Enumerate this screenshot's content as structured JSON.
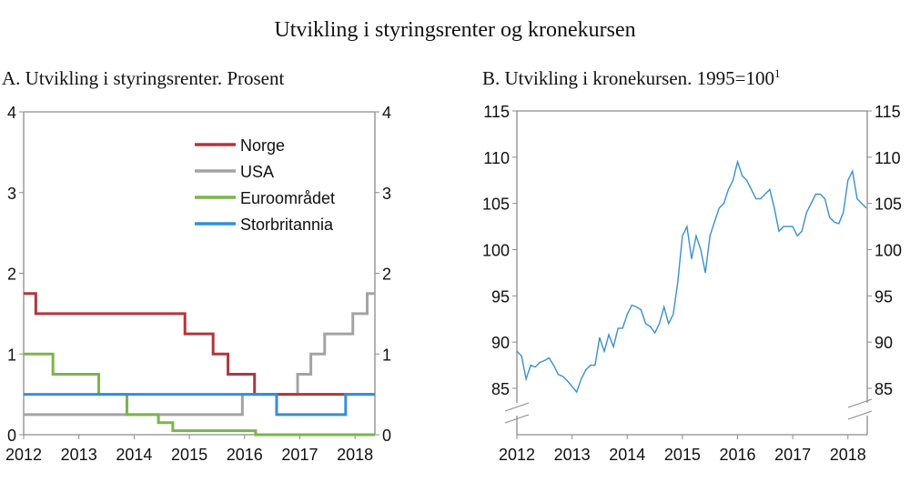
{
  "title": "Utvikling i styringsrenter og kronekursen",
  "chart_data": [
    {
      "type": "line",
      "step": true,
      "title": "A.  Utvikling i styringsrenter. Prosent",
      "xlim": [
        2012,
        2018.36
      ],
      "ylim": [
        0,
        4
      ],
      "x_ticks": [
        "2012",
        "2013",
        "2014",
        "2015",
        "2016",
        "2017",
        "2018"
      ],
      "y_ticks": [
        "0",
        "1",
        "2",
        "3",
        "4"
      ],
      "y_axis": "both",
      "grid": false,
      "legend": "top-right",
      "series": [
        {
          "name": "Norge",
          "color": "#b5343c",
          "points": [
            [
              2012,
              1.75
            ],
            [
              2012.22,
              1.5
            ],
            [
              2014.92,
              1.25
            ],
            [
              2015.43,
              1.0
            ],
            [
              2015.7,
              0.75
            ],
            [
              2016.18,
              0.5
            ],
            [
              2018.36,
              0.5
            ]
          ]
        },
        {
          "name": "USA",
          "color": "#a3a3a3",
          "points": [
            [
              2012,
              0.25
            ],
            [
              2015.96,
              0.5
            ],
            [
              2016.96,
              0.75
            ],
            [
              2017.2,
              1.0
            ],
            [
              2017.45,
              1.25
            ],
            [
              2017.96,
              1.5
            ],
            [
              2018.22,
              1.75
            ],
            [
              2018.36,
              1.75
            ]
          ]
        },
        {
          "name": "Euroområdet",
          "color": "#7ab648",
          "points": [
            [
              2012,
              1.0
            ],
            [
              2012.53,
              0.75
            ],
            [
              2013.36,
              0.5
            ],
            [
              2013.87,
              0.25
            ],
            [
              2014.44,
              0.15
            ],
            [
              2014.7,
              0.05
            ],
            [
              2016.2,
              0.0
            ],
            [
              2018.36,
              0.0
            ]
          ]
        },
        {
          "name": "Storbritannia",
          "color": "#3390d8",
          "points": [
            [
              2012,
              0.5
            ],
            [
              2016.58,
              0.25
            ],
            [
              2017.83,
              0.5
            ],
            [
              2018.36,
              0.5
            ]
          ]
        }
      ]
    },
    {
      "type": "line",
      "title": "B.  Utvikling i kronekursen. 1995=100",
      "title_superscript": "1",
      "xlim": [
        2012,
        2018.35
      ],
      "ylim": [
        85,
        115
      ],
      "axis_break": true,
      "x_ticks": [
        "2012",
        "2013",
        "2014",
        "2015",
        "2016",
        "2017",
        "2018"
      ],
      "y_ticks": [
        "85",
        "90",
        "95",
        "100",
        "105",
        "110",
        "115"
      ],
      "y_axis": "both",
      "grid": false,
      "series": [
        {
          "color": "#3a8fd6",
          "start": 2012.0,
          "step_years": 0.08333,
          "values": [
            89,
            88.5,
            86,
            87.5,
            87.3,
            87.8,
            88,
            88.3,
            87.5,
            86.5,
            86.3,
            85.8,
            85.2,
            84.6,
            86,
            87,
            87.5,
            87.5,
            90.5,
            89,
            90.8,
            89.5,
            91.5,
            91.5,
            93,
            94,
            93.8,
            93.5,
            92,
            91.7,
            91,
            92,
            93.8,
            92,
            93,
            96.5,
            101.5,
            102.5,
            99,
            101.5,
            100,
            97.5,
            101.5,
            103,
            104.5,
            105,
            106.5,
            107.5,
            109.5,
            108,
            107.5,
            106.5,
            105.5,
            105.5,
            106,
            106.5,
            104.5,
            102,
            102.5,
            102.5,
            102.5,
            101.5,
            102,
            104,
            105,
            106,
            106,
            105.5,
            103.5,
            103,
            102.8,
            104,
            107.5,
            108.5,
            105.5,
            105,
            104.5
          ]
        }
      ]
    }
  ]
}
